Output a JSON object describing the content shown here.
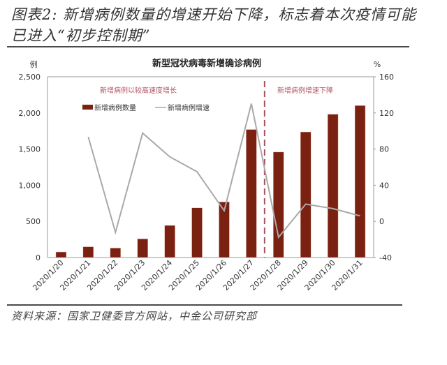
{
  "figure": {
    "title": "图表2: 新增病例数量的增速开始下降，标志着本次疫情可能已进入“初步控制期”",
    "source": "资料来源：国家卫健委官方网站，中金公司研究部"
  },
  "colors": {
    "bar": "#7a2112",
    "line": "#a9a9a9",
    "divider": "#a8505e",
    "annotation": "#b25565",
    "axis": "#9a9a9a"
  },
  "chart_data": {
    "type": "bar+line",
    "title": "新型冠状病毒新增确诊病例",
    "categories": [
      "2020/1/20",
      "2020/1/21",
      "2020/1/22",
      "2020/1/23",
      "2020/1/24",
      "2020/1/25",
      "2020/1/26",
      "2020/1/27",
      "2020/1/28",
      "2020/1/29",
      "2020/1/30",
      "2020/1/31"
    ],
    "series": [
      {
        "name": "新增病例数量",
        "type": "bar",
        "axis": "left",
        "values": [
          77,
          149,
          131,
          259,
          444,
          688,
          769,
          1771,
          1459,
          1737,
          1982,
          2102
        ]
      },
      {
        "name": "新增病例增速",
        "type": "line",
        "axis": "right",
        "values": [
          null,
          93.5,
          -12.1,
          97.7,
          71.4,
          55.0,
          11.8,
          130.3,
          -17.6,
          19.1,
          14.1,
          6.1
        ]
      }
    ],
    "left_axis": {
      "label": "例",
      "min": 0,
      "max": 2500,
      "ticks": [
        0,
        500,
        1000,
        1500,
        2000,
        2500
      ],
      "tick_labels": [
        "0",
        "500",
        "1,000",
        "1,500",
        "2,000",
        "2,500"
      ]
    },
    "right_axis": {
      "label": "%",
      "min": -40,
      "max": 160,
      "ticks": [
        -40,
        0,
        40,
        80,
        120,
        160
      ],
      "tick_labels": [
        "-40",
        "0",
        "40",
        "80",
        "120",
        "160"
      ]
    },
    "annotations": [
      {
        "text": "新增病例以较高速度增长",
        "region": "left"
      },
      {
        "text": "新增病例增速下降",
        "region": "right"
      }
    ],
    "divider_after_category": "2020/1/27",
    "legend": {
      "position": "top-left inside",
      "entries": [
        "新增病例数量",
        "新增病例增速"
      ]
    },
    "grid": false
  }
}
